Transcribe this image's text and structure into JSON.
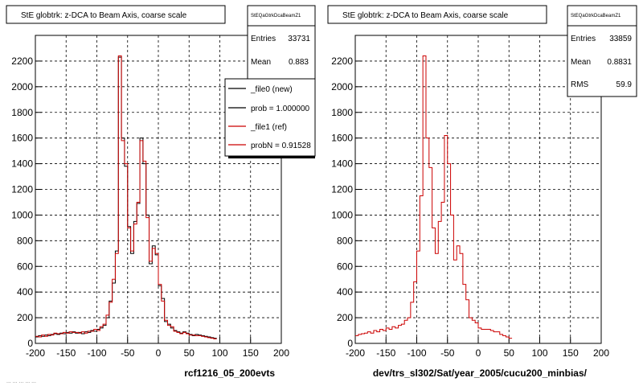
{
  "panels": [
    {
      "title": "StE globtrk: z-DCA to Beam Axis, coarse scale",
      "stats_name": "StEQaGtrkDcaBeamZ1",
      "stats": [
        {
          "label": "Entries",
          "value": "33731"
        },
        {
          "label": "Mean",
          "value": "0.883"
        }
      ],
      "legend": [
        {
          "text": "_file0 (new)",
          "color": "#000000"
        },
        {
          "text": "prob = 1.000000",
          "color": "#000000"
        },
        {
          "text": "_file1 (ref)",
          "color": "#cc0000"
        },
        {
          "text": "probN = 0.91528",
          "color": "#cc0000"
        }
      ],
      "xlabel": "rcf1216_05_200evts"
    },
    {
      "title": "StE globtrk: z-DCA to Beam Axis, coarse scale",
      "stats_name": "StEQaGtrkDcaBeamZ1",
      "stats": [
        {
          "label": "Entries",
          "value": "33859"
        },
        {
          "label": "Mean",
          "value": "0.8831"
        },
        {
          "label": "RMS",
          "value": "59.9"
        }
      ],
      "xlabel": "dev/trs_sl302/Sat/year_2005/cucu200_minbias/"
    }
  ],
  "footer": "... ... ... ... ...",
  "chart_data": [
    {
      "type": "line",
      "style": "step-histogram",
      "bin_width": 5,
      "xlim": [
        -200,
        200
      ],
      "ylim": [
        0,
        2400
      ],
      "x_ticks": [
        -200,
        -150,
        -100,
        -50,
        0,
        50,
        100,
        150,
        200
      ],
      "y_ticks": [
        200,
        400,
        600,
        800,
        1000,
        1200,
        1400,
        1600,
        1800,
        2000,
        2200
      ],
      "grid": true,
      "legend_position": "top-right",
      "series": [
        {
          "name": "_file0 (new)",
          "color": "#000000",
          "values": [
            50,
            60,
            55,
            65,
            60,
            70,
            75,
            70,
            80,
            75,
            85,
            80,
            90,
            80,
            85,
            75,
            90,
            85,
            100,
            95,
            110,
            120,
            140,
            200,
            330,
            470,
            720,
            2230,
            1600,
            1380,
            910,
            700,
            950,
            1090,
            1600,
            1400,
            1000,
            620,
            760,
            690,
            450,
            350,
            170,
            150,
            120,
            100,
            90,
            80,
            90,
            80,
            70,
            60,
            70,
            65,
            60,
            55,
            50,
            45,
            40
          ]
        },
        {
          "name": "_file1 (ref)",
          "color": "#cc0000",
          "values": [
            55,
            50,
            65,
            55,
            70,
            65,
            80,
            75,
            75,
            85,
            80,
            90,
            85,
            85,
            80,
            90,
            80,
            95,
            95,
            110,
            100,
            130,
            150,
            220,
            320,
            500,
            700,
            2240,
            1580,
            1400,
            900,
            720,
            930,
            1100,
            1580,
            1420,
            980,
            640,
            740,
            700,
            460,
            330,
            180,
            140,
            130,
            95,
            85,
            75,
            85,
            75,
            65,
            65,
            60,
            60,
            55,
            50,
            45,
            40,
            35
          ]
        }
      ]
    },
    {
      "type": "line",
      "style": "step-histogram",
      "bin_width": 5,
      "xlim": [
        -200,
        200
      ],
      "ylim": [
        0,
        2400
      ],
      "x_ticks": [
        -200,
        -150,
        -100,
        -50,
        0,
        50,
        100,
        150,
        200
      ],
      "y_ticks": [
        200,
        400,
        600,
        800,
        1000,
        1200,
        1400,
        1600,
        1800,
        2000,
        2200
      ],
      "grid": true,
      "series": [
        {
          "color": "#cc0000",
          "values": [
            60,
            70,
            75,
            80,
            90,
            80,
            100,
            90,
            110,
            100,
            120,
            110,
            130,
            120,
            140,
            150,
            180,
            200,
            320,
            480,
            720,
            1150,
            2240,
            1600,
            1370,
            900,
            700,
            950,
            1100,
            1620,
            1400,
            1000,
            650,
            760,
            700,
            460,
            340,
            200,
            180,
            160,
            120,
            110,
            110,
            110,
            100,
            90,
            90,
            70,
            60,
            50,
            40
          ]
        }
      ]
    }
  ]
}
